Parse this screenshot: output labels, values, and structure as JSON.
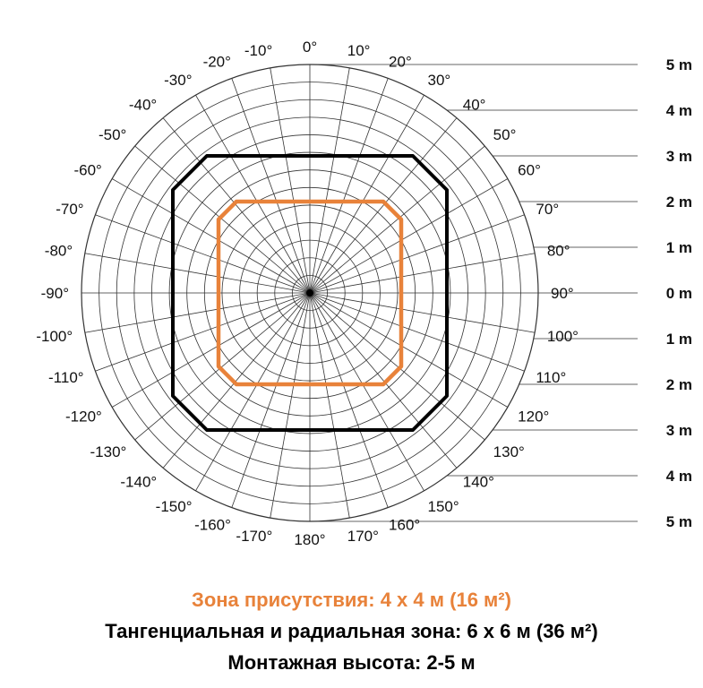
{
  "diagram": {
    "angle_labels": [
      "0°",
      "10°",
      "20°",
      "30°",
      "40°",
      "50°",
      "60°",
      "70°",
      "80°",
      "90°",
      "100°",
      "110°",
      "120°",
      "130°",
      "140°",
      "150°",
      "160°",
      "170°",
      "180°",
      "-170°",
      "-160°",
      "-150°",
      "-140°",
      "-130°",
      "-120°",
      "-110°",
      "-100°",
      "-90°",
      "-80°",
      "-70°",
      "-60°",
      "-50°",
      "-40°",
      "-30°",
      "-20°",
      "-10°"
    ],
    "scale_labels": [
      "5 m",
      "4 m",
      "3 m",
      "2 m",
      "1 m",
      "0 m",
      "1 m",
      "2 m",
      "3 m",
      "4 m",
      "5 m"
    ],
    "ring_count": 13,
    "spoke_count": 36,
    "zones": [
      {
        "name": "presence",
        "size_m": 4,
        "color": "#e8823a"
      },
      {
        "name": "tangential-radial",
        "size_m": 6,
        "color": "#000000"
      }
    ]
  },
  "captions": {
    "presence": "Зона присутствия: 4 x 4 м (16 м²)",
    "tangential": "Тангенциальная и радиальная зона: 6 x 6 м (36 м²)",
    "height": "Монтажная высота: 2-5 м"
  },
  "colors": {
    "accent": "#e8823a",
    "grid": "#333333"
  }
}
